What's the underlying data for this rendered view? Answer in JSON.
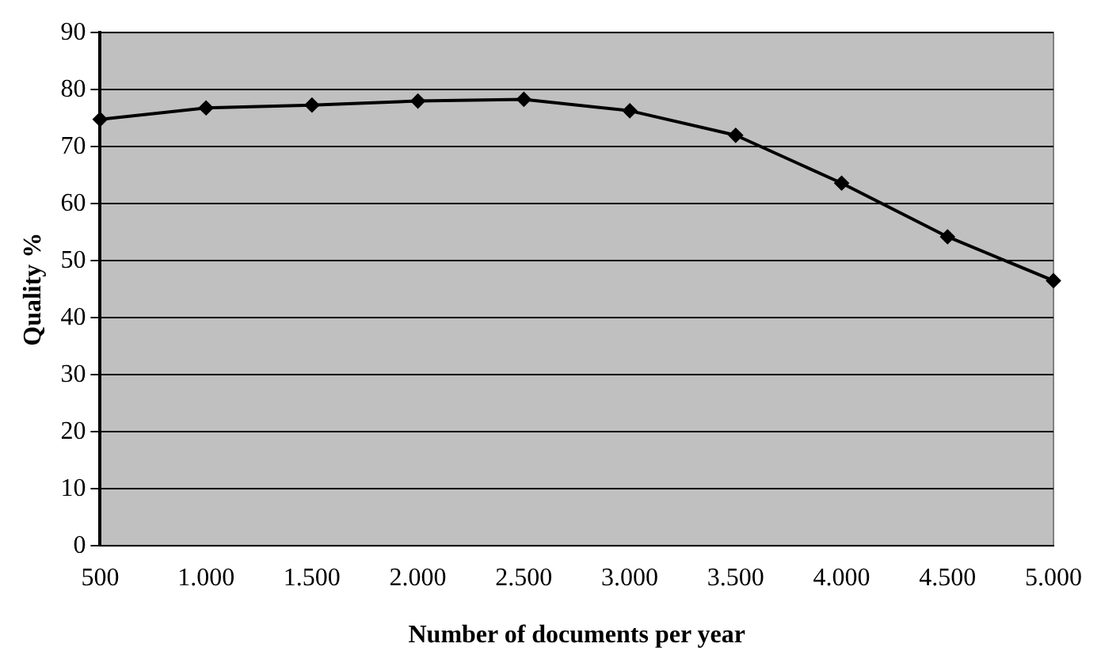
{
  "chart_data": {
    "type": "line",
    "xlabel": "Number of documents per year",
    "ylabel": "Quality %",
    "categories": [
      "500",
      "1.000",
      "1.500",
      "2.000",
      "2.500",
      "3.000",
      "3.500",
      "4.000",
      "4.500",
      "5.000"
    ],
    "series": [
      {
        "color": "#000000",
        "values": [
          74.8,
          76.8,
          77.3,
          78.0,
          78.3,
          76.3,
          72.0,
          63.6,
          54.2,
          46.5
        ]
      }
    ],
    "ylim": [
      0,
      90
    ],
    "yticks": [
      0,
      10,
      20,
      30,
      40,
      50,
      60,
      70,
      80,
      90
    ],
    "grid": "y",
    "legend": false,
    "marker": "diamond",
    "line_style": "solid"
  }
}
